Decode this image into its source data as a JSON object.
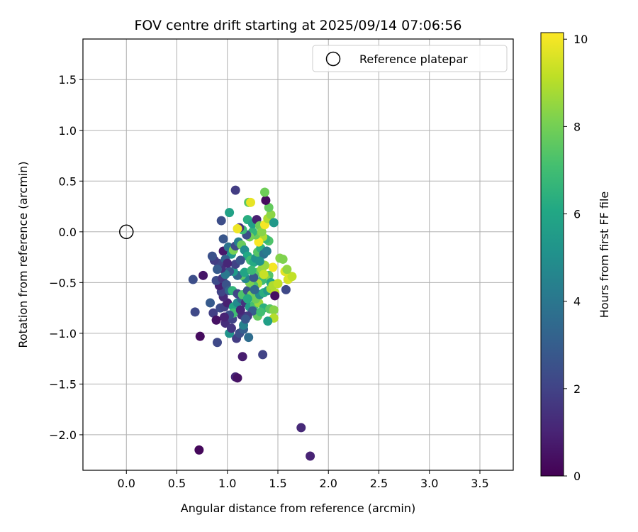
{
  "chart_data": {
    "type": "scatter",
    "title": "FOV centre drift starting at 2025/09/14 07:06:56",
    "xlabel": "Angular distance from reference (arcmin)",
    "ylabel": "Rotation from reference (arcmin)",
    "xlim": [
      -0.43,
      3.83
    ],
    "ylim": [
      -2.35,
      1.9
    ],
    "xticks": [
      0.0,
      0.5,
      1.0,
      1.5,
      2.0,
      2.5,
      3.0,
      3.5
    ],
    "xtick_labels": [
      "0.0",
      "0.5",
      "1.0",
      "1.5",
      "2.0",
      "2.5",
      "3.0",
      "3.5"
    ],
    "yticks": [
      -2.0,
      -1.5,
      -1.0,
      -0.5,
      0.0,
      0.5,
      1.0,
      1.5
    ],
    "ytick_labels": [
      "−2.0",
      "−1.5",
      "−1.0",
      "−0.5",
      "0.0",
      "0.5",
      "1.0",
      "1.5"
    ],
    "grid": true,
    "legend": {
      "placement": "upper right",
      "entries": [
        {
          "label": "Reference platepar",
          "marker": "open-circle",
          "x": 0.0,
          "y": 0.0
        }
      ]
    },
    "colorbar": {
      "label": "Hours from first FF file",
      "range": [
        0,
        10.15
      ],
      "ticks": [
        0,
        2,
        4,
        6,
        8,
        10
      ],
      "tick_labels": [
        "0",
        "2",
        "4",
        "6",
        "8",
        "10"
      ],
      "colormap": "viridis"
    },
    "series": [
      {
        "marker": "filled-circle",
        "points": [
          [
            0.72,
            -2.15,
            0.2
          ],
          [
            1.82,
            -2.21,
            1.0
          ],
          [
            1.73,
            -1.93,
            1.2
          ],
          [
            1.08,
            -1.43,
            1.1
          ],
          [
            1.1,
            -1.44,
            0.5
          ],
          [
            1.15,
            -1.23,
            0.8
          ],
          [
            1.35,
            -1.21,
            2.0
          ],
          [
            0.9,
            -1.09,
            2.2
          ],
          [
            0.73,
            -1.03,
            0.3
          ],
          [
            1.09,
            -1.05,
            1.8
          ],
          [
            1.21,
            -1.04,
            3.6
          ],
          [
            0.68,
            -0.79,
            2.2
          ],
          [
            0.76,
            -0.43,
            0.6
          ],
          [
            0.66,
            -0.47,
            2.4
          ],
          [
            0.83,
            -0.7,
            2.9
          ],
          [
            0.86,
            -0.8,
            1.9
          ],
          [
            0.89,
            -0.87,
            0.5
          ],
          [
            0.98,
            -0.9,
            1.3
          ],
          [
            1.02,
            -1.0,
            5.2
          ],
          [
            1.12,
            -1.0,
            2.4
          ],
          [
            1.16,
            -0.96,
            3.0
          ],
          [
            1.16,
            -0.92,
            4.4
          ],
          [
            1.05,
            -0.86,
            2.0
          ],
          [
            1.14,
            -0.82,
            1.4
          ],
          [
            0.93,
            -0.75,
            2.3
          ],
          [
            0.97,
            -0.74,
            1.9
          ],
          [
            1.0,
            -0.7,
            0.9
          ],
          [
            1.06,
            -0.74,
            6.0
          ],
          [
            1.1,
            -0.7,
            4.8
          ],
          [
            1.14,
            -0.66,
            3.2
          ],
          [
            1.18,
            -0.7,
            1.5
          ],
          [
            1.22,
            -0.74,
            5.6
          ],
          [
            1.27,
            -0.72,
            7.1
          ],
          [
            1.31,
            -0.7,
            8.6
          ],
          [
            1.36,
            -0.75,
            6.4
          ],
          [
            1.42,
            -0.76,
            7.5
          ],
          [
            1.46,
            -0.77,
            8.3
          ],
          [
            1.46,
            -0.85,
            9.0
          ],
          [
            1.4,
            -0.88,
            5.7
          ],
          [
            1.3,
            -0.83,
            7.7
          ],
          [
            1.25,
            -0.78,
            3.0
          ],
          [
            1.2,
            -0.83,
            1.8
          ],
          [
            1.06,
            -0.8,
            7.0
          ],
          [
            0.96,
            -0.64,
            1.2
          ],
          [
            0.94,
            -0.59,
            2.0
          ],
          [
            0.92,
            -0.53,
            0.9
          ],
          [
            0.89,
            -0.48,
            2.3
          ],
          [
            0.95,
            -0.46,
            1.6
          ],
          [
            0.99,
            -0.52,
            2.6
          ],
          [
            1.02,
            -0.58,
            3.3
          ],
          [
            1.05,
            -0.58,
            6.6
          ],
          [
            1.1,
            -0.61,
            2.1
          ],
          [
            1.15,
            -0.62,
            7.3
          ],
          [
            1.2,
            -0.58,
            2.6
          ],
          [
            1.24,
            -0.62,
            8.0
          ],
          [
            1.28,
            -0.66,
            7.9
          ],
          [
            1.32,
            -0.62,
            4.9
          ],
          [
            1.36,
            -0.6,
            6.3
          ],
          [
            1.4,
            -0.58,
            5.4
          ],
          [
            1.43,
            -0.56,
            8.7
          ],
          [
            1.47,
            -0.6,
            9.1
          ],
          [
            1.47,
            -0.63,
            0.4
          ],
          [
            1.58,
            -0.57,
            2.2
          ],
          [
            1.6,
            -0.47,
            9.5
          ],
          [
            1.62,
            -0.45,
            9.6
          ],
          [
            1.64,
            -0.44,
            9.2
          ],
          [
            1.57,
            -0.39,
            9.7
          ],
          [
            1.59,
            -0.37,
            8.5
          ],
          [
            1.45,
            -0.35,
            10.0
          ],
          [
            1.41,
            -0.43,
            7.4
          ],
          [
            1.38,
            -0.46,
            8.4
          ],
          [
            1.34,
            -0.48,
            6.9
          ],
          [
            1.3,
            -0.51,
            8.8
          ],
          [
            1.26,
            -0.53,
            7.2
          ],
          [
            1.22,
            -0.5,
            8.1
          ],
          [
            1.18,
            -0.46,
            4.6
          ],
          [
            1.14,
            -0.43,
            7.6
          ],
          [
            1.1,
            -0.43,
            3.3
          ],
          [
            1.06,
            -0.39,
            5.5
          ],
          [
            1.02,
            -0.39,
            2.7
          ],
          [
            0.98,
            -0.42,
            4.1
          ],
          [
            0.94,
            -0.36,
            1.4
          ],
          [
            0.91,
            -0.31,
            2.1
          ],
          [
            0.87,
            -0.28,
            1.8
          ],
          [
            0.85,
            -0.24,
            2.5
          ],
          [
            0.9,
            -0.37,
            2.9
          ],
          [
            0.96,
            -0.19,
            0.7
          ],
          [
            1.01,
            -0.15,
            3.9
          ],
          [
            1.04,
            -0.22,
            5.3
          ],
          [
            1.06,
            -0.18,
            8.1
          ],
          [
            1.08,
            -0.14,
            2.3
          ],
          [
            1.11,
            -0.1,
            4.3
          ],
          [
            1.14,
            -0.13,
            7.8
          ],
          [
            1.17,
            -0.18,
            5.0
          ],
          [
            1.2,
            -0.24,
            6.1
          ],
          [
            1.23,
            -0.28,
            7.0
          ],
          [
            1.26,
            -0.3,
            6.2
          ],
          [
            1.28,
            -0.26,
            5.1
          ],
          [
            1.3,
            -0.2,
            7.4
          ],
          [
            1.33,
            -0.16,
            6.5
          ],
          [
            1.36,
            -0.22,
            3.8
          ],
          [
            1.39,
            -0.19,
            4.2
          ],
          [
            1.41,
            -0.09,
            7.3
          ],
          [
            1.38,
            -0.07,
            6.7
          ],
          [
            1.35,
            -0.05,
            8.9
          ],
          [
            1.31,
            -0.1,
            10.1
          ],
          [
            1.28,
            -0.03,
            7.8
          ],
          [
            1.25,
            0.0,
            6.6
          ],
          [
            1.22,
            -0.05,
            8.0
          ],
          [
            1.19,
            -0.03,
            2.4
          ],
          [
            1.15,
            0.02,
            6.9
          ],
          [
            1.12,
            0.04,
            1.5
          ],
          [
            1.1,
            0.03,
            9.9
          ],
          [
            1.02,
            0.19,
            5.8
          ],
          [
            1.21,
            0.29,
            7.5
          ],
          [
            1.23,
            0.29,
            9.8
          ],
          [
            1.2,
            0.12,
            6.3
          ],
          [
            1.25,
            0.08,
            5.7
          ],
          [
            1.29,
            0.12,
            0.9
          ],
          [
            1.32,
            0.06,
            7.9
          ],
          [
            1.34,
            0.0,
            8.3
          ],
          [
            1.37,
            0.07,
            10.0
          ],
          [
            1.4,
            0.13,
            8.9
          ],
          [
            1.43,
            0.17,
            8.4
          ],
          [
            1.41,
            0.24,
            7.7
          ],
          [
            1.46,
            0.09,
            5.4
          ],
          [
            1.38,
            0.31,
            0.3
          ],
          [
            1.37,
            0.39,
            7.9
          ],
          [
            1.08,
            0.41,
            1.8
          ],
          [
            0.94,
            0.11,
            2.4
          ],
          [
            0.96,
            -0.07,
            2.7
          ],
          [
            0.98,
            -0.27,
            3.1
          ],
          [
            1.52,
            -0.26,
            8.3
          ],
          [
            1.55,
            -0.27,
            8.2
          ],
          [
            1.3,
            -0.4,
            7.6
          ],
          [
            1.34,
            -0.37,
            8.5
          ],
          [
            1.37,
            -0.33,
            8.6
          ],
          [
            1.43,
            -0.5,
            6.0
          ],
          [
            1.45,
            -0.53,
            8.9
          ],
          [
            1.5,
            -0.51,
            9.2
          ],
          [
            1.33,
            -0.79,
            7.0
          ],
          [
            1.18,
            -0.86,
            2.7
          ],
          [
            1.13,
            -0.77,
            1.1
          ],
          [
            1.02,
            -0.82,
            2.5
          ],
          [
            0.97,
            -0.84,
            1.0
          ],
          [
            1.04,
            -0.95,
            1.6
          ],
          [
            1.2,
            -0.66,
            6.2
          ],
          [
            1.26,
            -0.45,
            2.8
          ],
          [
            1.17,
            -0.4,
            5.9
          ],
          [
            1.08,
            -0.32,
            2.0
          ],
          [
            1.0,
            -0.31,
            1.1
          ],
          [
            1.13,
            -0.28,
            2.6
          ],
          [
            1.24,
            -0.38,
            6.8
          ],
          [
            1.32,
            -0.29,
            5.2
          ],
          [
            1.36,
            -0.42,
            9.3
          ],
          [
            1.27,
            -0.57,
            3.4
          ]
        ]
      }
    ]
  }
}
